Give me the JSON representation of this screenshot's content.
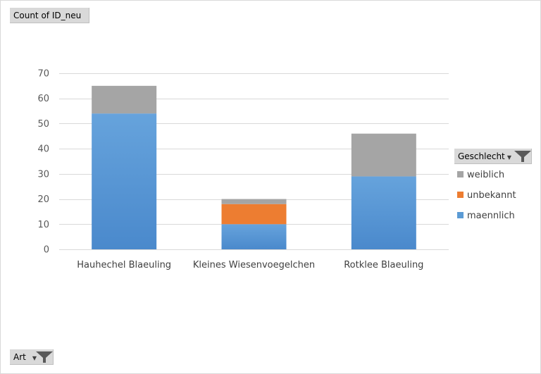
{
  "value_field": {
    "label": "Count of ID_neu"
  },
  "legend_field": {
    "label": "Geschlecht",
    "icon": "filter-icon"
  },
  "axis_field": {
    "label": "Art",
    "icon": "filter-icon"
  },
  "chart_data": {
    "type": "bar",
    "stacked": true,
    "categories": [
      "Hauhechel Blaeuling",
      "Kleines Wiesenvoegelchen",
      "Rotklee Blaeuling"
    ],
    "series": [
      {
        "name": "maennlich",
        "color": "#5b9bd5",
        "values": [
          54,
          10,
          29
        ]
      },
      {
        "name": "unbekannt",
        "color": "#ed7d31",
        "values": [
          0,
          8,
          0
        ]
      },
      {
        "name": "weiblich",
        "color": "#a5a5a5",
        "values": [
          11,
          2,
          17
        ]
      }
    ],
    "yticks": [
      0,
      10,
      20,
      30,
      40,
      50,
      60,
      70
    ],
    "ylim": [
      0,
      70
    ],
    "grid": true,
    "legend_position": "right",
    "legend_order": [
      "weiblich",
      "unbekannt",
      "maennlich"
    ]
  }
}
